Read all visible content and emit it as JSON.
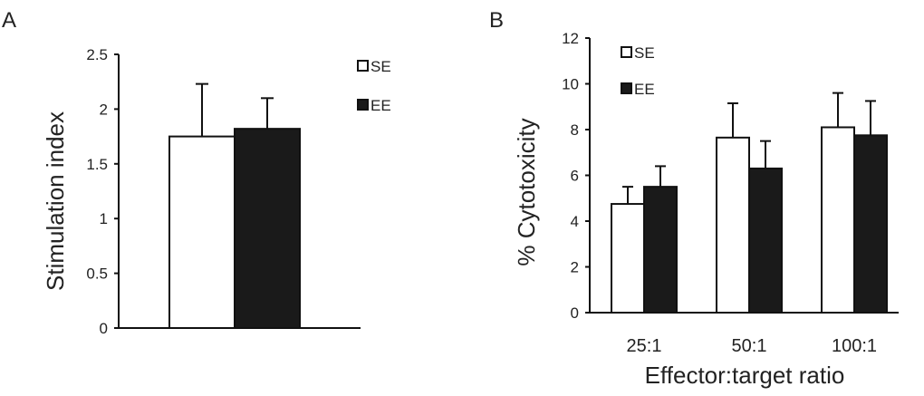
{
  "chart_data": [
    {
      "panel": "A",
      "type": "bar",
      "title": "",
      "xlabel": "",
      "ylabel": "Stimulation index",
      "ylim": [
        0,
        2.5
      ],
      "yticks": [
        "0",
        "0.5",
        "1",
        "1.5",
        "2",
        "2.5"
      ],
      "categories": [
        ""
      ],
      "series": [
        {
          "name": "SE",
          "values": [
            1.75
          ],
          "errors": [
            0.48
          ],
          "fill": "#ffffff"
        },
        {
          "name": "EE",
          "values": [
            1.82
          ],
          "errors": [
            0.28
          ],
          "fill": "#1a1a1a"
        }
      ],
      "legend_position": "top-right"
    },
    {
      "panel": "B",
      "type": "bar",
      "title": "",
      "xlabel": "Effector:target ratio",
      "ylabel": "% Cytotoxicity",
      "ylim": [
        0,
        12
      ],
      "yticks": [
        "0",
        "2",
        "4",
        "6",
        "8",
        "10",
        "12"
      ],
      "categories": [
        "25:1",
        "50:1",
        "100:1"
      ],
      "series": [
        {
          "name": "SE",
          "values": [
            4.75,
            7.65,
            8.1
          ],
          "errors": [
            0.75,
            1.5,
            1.5
          ],
          "fill": "#ffffff"
        },
        {
          "name": "EE",
          "values": [
            5.5,
            6.3,
            7.75
          ],
          "errors": [
            0.9,
            1.2,
            1.5
          ],
          "fill": "#1a1a1a"
        }
      ],
      "legend_position": "top-left"
    }
  ],
  "colors": {
    "axis": "#111111",
    "text": "#222222",
    "se": "#ffffff",
    "ee": "#1a1a1a"
  }
}
